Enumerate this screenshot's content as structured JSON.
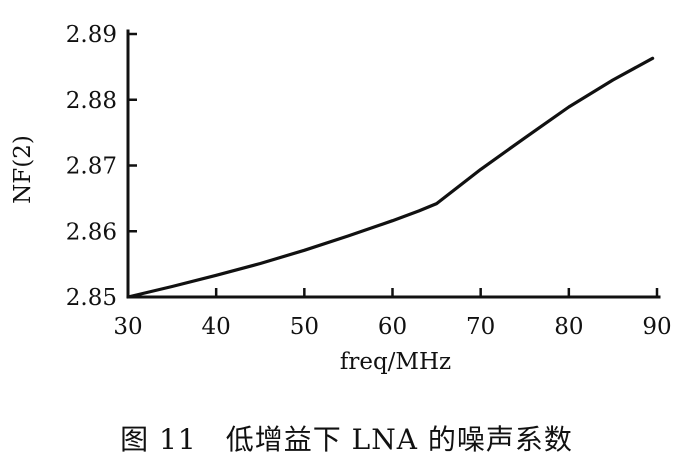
{
  "caption": "图 11　低增益下 LNA 的噪声系数",
  "chart_data": {
    "type": "line",
    "title": "",
    "xlabel": "freq/MHz",
    "ylabel": "NF(2)",
    "xlim": [
      30,
      90
    ],
    "ylim": [
      2.85,
      2.89
    ],
    "xticks": [
      30,
      40,
      50,
      60,
      70,
      80,
      90
    ],
    "yticks": [
      2.85,
      2.86,
      2.87,
      2.88,
      2.89
    ],
    "xtick_labels": [
      "30",
      "40",
      "50",
      "60",
      "70",
      "80",
      "90"
    ],
    "ytick_labels": [
      "2.85",
      "2.86",
      "2.87",
      "2.88",
      "2.89"
    ],
    "grid": false,
    "line_color": "#111111",
    "series": [
      {
        "x": [
          30,
          35,
          40,
          45,
          50,
          55,
          60,
          63,
          65,
          70,
          75,
          80,
          85,
          89.5
        ],
        "values": [
          2.85,
          2.8516,
          2.8533,
          2.8551,
          2.8571,
          2.8593,
          2.8616,
          2.8631,
          2.8642,
          2.8694,
          2.8742,
          2.8789,
          2.883,
          2.8863
        ]
      }
    ]
  }
}
